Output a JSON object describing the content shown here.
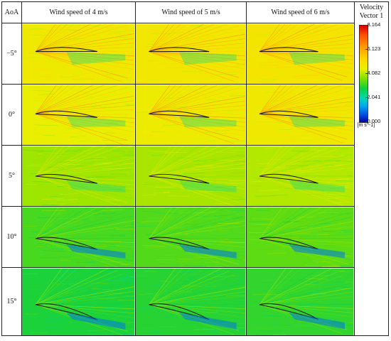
{
  "header": {
    "aoa_label": "AoA",
    "columns": [
      "Wind speed of 4 m/s",
      "Wind speed of 5 m/s",
      "Wind speed of 6 m/s"
    ]
  },
  "rows": [
    {
      "label": "−5°",
      "aoa": -5
    },
    {
      "label": "0°",
      "aoa": 0
    },
    {
      "label": "5°",
      "aoa": 5
    },
    {
      "label": "10°",
      "aoa": 10
    },
    {
      "label": "15°",
      "aoa": 15
    }
  ],
  "legend": {
    "title_line1": "Velocity",
    "title_line2": "Vector 1",
    "ticks": [
      "8.164",
      "6.123",
      "4.082",
      "2.041",
      "0.000"
    ],
    "unit": "[m s^-1]",
    "max": 8.164,
    "min": 0.0
  },
  "colors": {
    "high": "#d60000",
    "mid_high": "#ffd900",
    "mid": "#10d040",
    "mid_low": "#00a8f0",
    "low": "#0000a8"
  }
}
